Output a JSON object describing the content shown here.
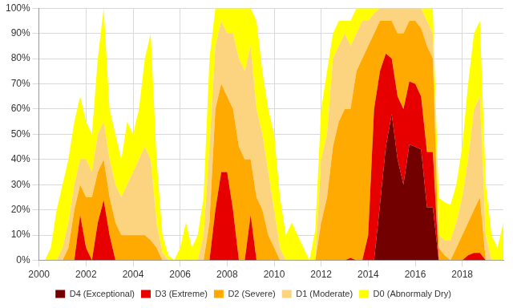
{
  "chart_data": {
    "type": "area",
    "stacked": true,
    "grid": true,
    "legend": "bottom",
    "x": [
      2000,
      2000.25,
      2000.5,
      2000.75,
      2001,
      2001.25,
      2001.5,
      2001.75,
      2002,
      2002.25,
      2002.5,
      2002.75,
      2003,
      2003.25,
      2003.5,
      2003.75,
      2004,
      2004.25,
      2004.5,
      2004.75,
      2005,
      2005.25,
      2005.5,
      2005.75,
      2006,
      2006.25,
      2006.5,
      2006.75,
      2007,
      2007.25,
      2007.5,
      2007.75,
      2008,
      2008.25,
      2008.5,
      2008.75,
      2009,
      2009.25,
      2009.5,
      2009.75,
      2010,
      2010.25,
      2010.5,
      2010.75,
      2011,
      2011.25,
      2011.5,
      2011.75,
      2012,
      2012.25,
      2012.5,
      2012.75,
      2013,
      2013.25,
      2013.5,
      2013.75,
      2014,
      2014.25,
      2014.5,
      2014.75,
      2015,
      2015.25,
      2015.5,
      2015.75,
      2016,
      2016.25,
      2016.5,
      2016.75,
      2017,
      2017.25,
      2017.5,
      2017.75,
      2018,
      2018.25,
      2018.5,
      2018.75,
      2019,
      2019.25,
      2019.5,
      2019.75
    ],
    "xlim": [
      2000,
      2019.75
    ],
    "xticks": [
      2000,
      2002,
      2004,
      2006,
      2008,
      2010,
      2012,
      2014,
      2016,
      2018
    ],
    "ylim": [
      0,
      100
    ],
    "yticks": [
      {
        "value": 0,
        "label": "0%"
      },
      {
        "value": 10,
        "label": "10%"
      },
      {
        "value": 20,
        "label": "20%"
      },
      {
        "value": 30,
        "label": "30%"
      },
      {
        "value": 40,
        "label": "40%"
      },
      {
        "value": 50,
        "label": "50%"
      },
      {
        "value": 60,
        "label": "60%"
      },
      {
        "value": 70,
        "label": "70%"
      },
      {
        "value": 80,
        "label": "80%"
      },
      {
        "value": 90,
        "label": "90%"
      },
      {
        "value": 100,
        "label": "100%"
      }
    ],
    "series": [
      {
        "name": "D4 (Exceptional)",
        "color": "#730000",
        "values": [
          0,
          0,
          0,
          0,
          0,
          0,
          0,
          0,
          0,
          0,
          0,
          0,
          0,
          0,
          0,
          0,
          0,
          0,
          0,
          0,
          0,
          0,
          0,
          0,
          0,
          0,
          0,
          0,
          0,
          0,
          0,
          0,
          0,
          0,
          0,
          0,
          0,
          0,
          0,
          0,
          0,
          0,
          0,
          0,
          0,
          0,
          0,
          0,
          0,
          0,
          0,
          0,
          0,
          0,
          0,
          0,
          0,
          0,
          22,
          45,
          58,
          40,
          30,
          46,
          45,
          44,
          21,
          21,
          0,
          0,
          0,
          0,
          0,
          0,
          0,
          0,
          0,
          0,
          0,
          0
        ]
      },
      {
        "name": "D3 (Extreme)",
        "color": "#e60000",
        "values": [
          0,
          0,
          0,
          0,
          0,
          0,
          0,
          18,
          5,
          0,
          15,
          24,
          10,
          0,
          0,
          0,
          0,
          0,
          0,
          0,
          0,
          0,
          0,
          0,
          0,
          0,
          0,
          0,
          0,
          0,
          20,
          35,
          35,
          20,
          0,
          0,
          18,
          0,
          0,
          0,
          0,
          0,
          0,
          0,
          0,
          0,
          0,
          0,
          0,
          0,
          0,
          0,
          0,
          1,
          0,
          0,
          10,
          60,
          53,
          37,
          22,
          25,
          30,
          25,
          25,
          21,
          22,
          22,
          0,
          0,
          0,
          0,
          0,
          2,
          3,
          3,
          0,
          0,
          0,
          0
        ]
      },
      {
        "name": "D2 (Severe)",
        "color": "#ffaa00",
        "values": [
          0,
          0,
          0,
          0,
          0,
          5,
          20,
          12,
          20,
          25,
          20,
          16,
          15,
          15,
          10,
          10,
          10,
          10,
          10,
          8,
          5,
          0,
          0,
          0,
          0,
          0,
          0,
          0,
          0,
          15,
          40,
          35,
          30,
          40,
          45,
          40,
          22,
          25,
          20,
          10,
          5,
          0,
          0,
          0,
          0,
          0,
          0,
          0,
          15,
          25,
          45,
          55,
          60,
          59,
          75,
          80,
          75,
          30,
          20,
          13,
          15,
          25,
          30,
          24,
          25,
          27,
          42,
          37,
          5,
          2,
          0,
          5,
          10,
          13,
          17,
          22,
          0,
          0,
          0,
          0
        ]
      },
      {
        "name": "D1 (Moderate)",
        "color": "#fcd37f",
        "values": [
          0,
          0,
          0,
          0,
          5,
          10,
          10,
          10,
          15,
          10,
          15,
          15,
          15,
          15,
          15,
          20,
          25,
          30,
          35,
          32,
          10,
          3,
          0,
          0,
          0,
          0,
          0,
          0,
          10,
          30,
          25,
          25,
          25,
          30,
          35,
          35,
          45,
          35,
          30,
          25,
          15,
          5,
          0,
          0,
          0,
          0,
          0,
          0,
          25,
          25,
          35,
          30,
          30,
          25,
          15,
          15,
          10,
          8,
          5,
          5,
          5,
          10,
          10,
          5,
          5,
          8,
          10,
          10,
          5,
          6,
          8,
          10,
          15,
          25,
          40,
          40,
          10,
          0,
          0,
          0
        ]
      },
      {
        "name": "D0 (Abnormaly Dry)",
        "color": "#ffff00",
        "values": [
          0,
          0,
          5,
          20,
          25,
          25,
          25,
          25,
          15,
          15,
          30,
          45,
          20,
          20,
          15,
          25,
          15,
          20,
          35,
          50,
          25,
          7,
          2,
          0,
          5,
          15,
          5,
          10,
          15,
          35,
          15,
          5,
          10,
          10,
          20,
          25,
          15,
          35,
          25,
          25,
          30,
          20,
          10,
          15,
          10,
          5,
          0,
          12,
          20,
          25,
          10,
          10,
          5,
          10,
          10,
          5,
          5,
          2,
          0,
          0,
          0,
          0,
          0,
          0,
          0,
          0,
          5,
          10,
          15,
          15,
          14,
          15,
          20,
          30,
          30,
          30,
          20,
          10,
          5,
          15
        ]
      }
    ]
  }
}
